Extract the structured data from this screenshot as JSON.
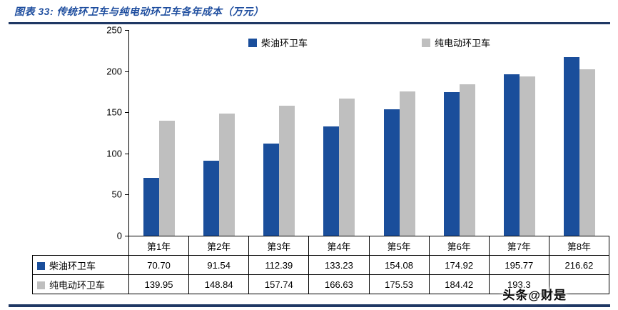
{
  "figure": {
    "title": "图表 33:  传统环卫车与纯电动环卫车各年成本（万元）",
    "watermark": "头条@财是"
  },
  "colors": {
    "title_blue": "#1F4E9F",
    "rule_navy": "#1F3864",
    "diesel_blue": "#1A4E9B",
    "electric_gray": "#BFBFBF",
    "axis_black": "#000000"
  },
  "chart_data": {
    "type": "bar",
    "title": "传统环卫车与纯电动环卫车各年成本（万元）",
    "categories": [
      "第1年",
      "第2年",
      "第3年",
      "第4年",
      "第5年",
      "第6年",
      "第7年",
      "第8年"
    ],
    "series": [
      {
        "name": "柴油环卫车",
        "color": "#1A4E9B",
        "values": [
          70.7,
          91.54,
          112.39,
          133.23,
          154.08,
          174.92,
          195.77,
          216.62
        ],
        "cell_labels": [
          "70.70",
          "91.54",
          "112.39",
          "133.23",
          "154.08",
          "174.92",
          "195.77",
          "216.62"
        ]
      },
      {
        "name": "纯电动环卫车",
        "color": "#BFBFBF",
        "values": [
          139.95,
          148.84,
          157.74,
          166.63,
          175.53,
          184.42,
          193.32,
          202.2
        ],
        "cell_labels": [
          "139.95",
          "148.84",
          "157.74",
          "166.63",
          "175.53",
          "184.42",
          "193.3",
          ""
        ]
      }
    ],
    "xlabel": "",
    "ylabel": "",
    "ylim": [
      0,
      250
    ],
    "yticks": [
      0,
      50,
      100,
      150,
      200,
      250
    ],
    "legend_position": "top-center",
    "grid": false
  }
}
